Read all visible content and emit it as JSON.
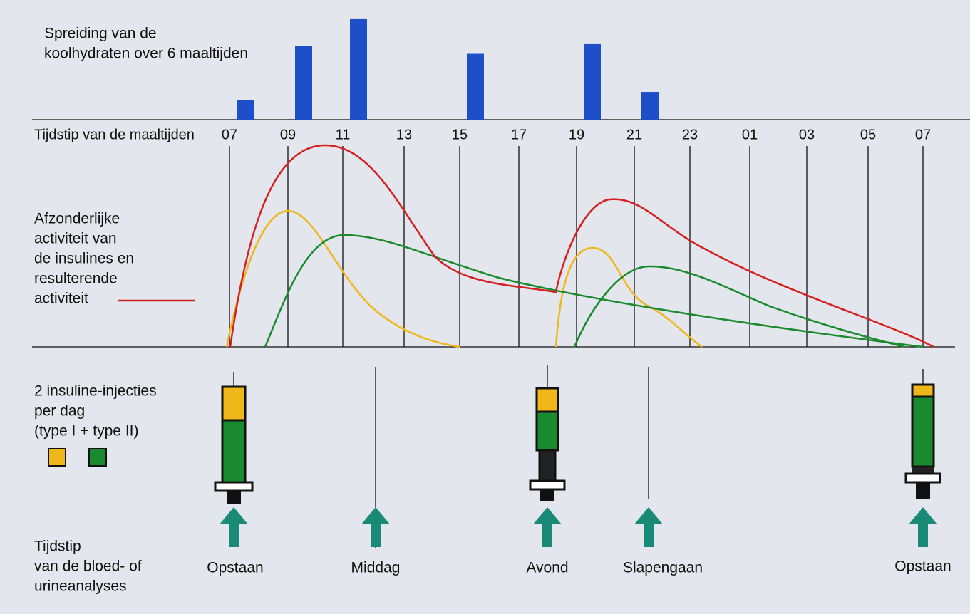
{
  "chart_data": {
    "type": "bar",
    "title": [
      "Spreiding van de",
      "koolhydraten over 6 maaltijden"
    ],
    "axis_label": "Tijdstip van de maaltijden",
    "categories": [
      "07",
      "09",
      "11",
      "13",
      "15",
      "17",
      "19",
      "21",
      "23",
      "01",
      "03",
      "05",
      "07"
    ],
    "values": [
      28,
      106,
      146,
      null,
      95,
      null,
      109,
      40,
      null,
      null,
      null,
      null,
      null
    ],
    "color": "#1f4fc8",
    "ylim": [
      0,
      150
    ]
  },
  "activity_label": [
    "Afzonderlijke",
    "activiteit van",
    "de insulines en",
    "resulterende",
    "activiteit"
  ],
  "injection_label": [
    "2 insuline-injecties",
    "per dag",
    "(type I + type II)"
  ],
  "analysis_label": [
    "Tijdstip",
    "van de bloed- of",
    "urineanalyses"
  ],
  "analysis_times": [
    "Opstaan",
    "Middag",
    "Avond",
    "Slapengaan",
    "Opstaan"
  ]
}
